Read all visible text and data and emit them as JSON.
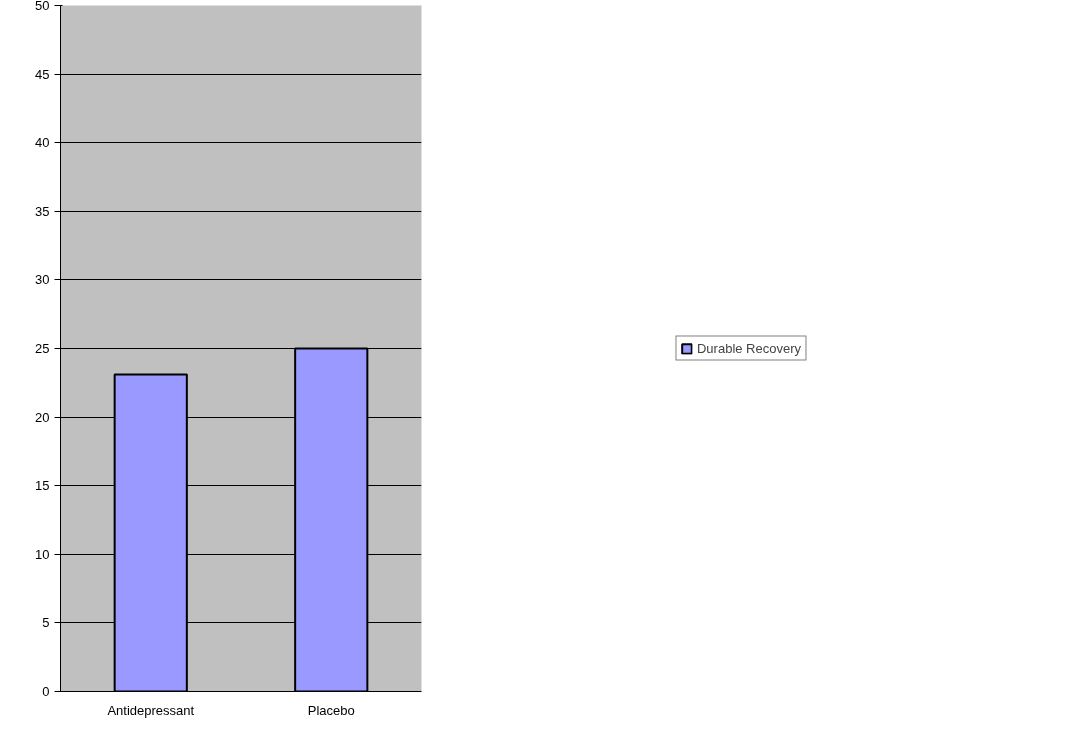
{
  "chart_data": {
    "type": "bar",
    "categories": [
      "Antidepressant",
      "Placebo"
    ],
    "series": [
      {
        "name": "Durable Recovery",
        "color": "#9999ff",
        "values": [
          23.1,
          25
        ]
      }
    ],
    "ylim": [
      0,
      50
    ],
    "yticks": [
      0,
      5,
      10,
      15,
      20,
      25,
      30,
      35,
      40,
      45,
      50
    ],
    "grid": "y",
    "legend": "right"
  }
}
